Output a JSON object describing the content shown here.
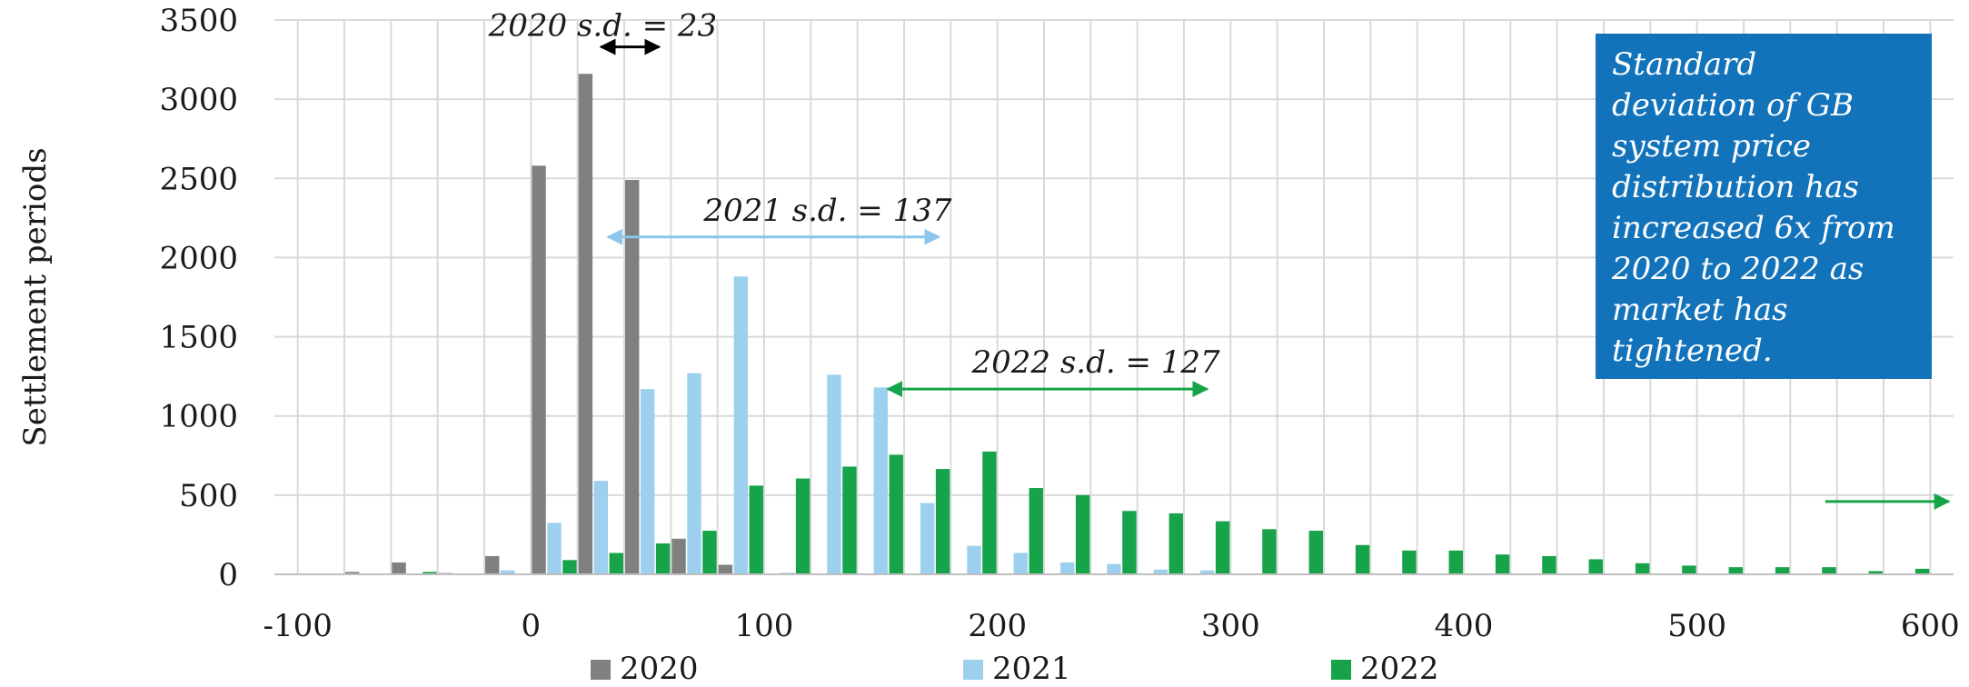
{
  "chart_data": {
    "type": "bar",
    "ylabel": "Settlement periods",
    "xlabel": "",
    "ylim": [
      0,
      3500
    ],
    "yticks": [
      0,
      500,
      1000,
      1500,
      2000,
      2500,
      3000,
      3500
    ],
    "xlim": [
      -110,
      610
    ],
    "xticks": [
      -100,
      0,
      100,
      200,
      300,
      400,
      500,
      600
    ],
    "bin_width": 20,
    "grid": true,
    "legend": "bottom",
    "series": [
      {
        "name": "2020",
        "color": "#808080",
        "x": [
          -70,
          -50,
          -30,
          -10,
          10,
          30,
          50,
          70,
          90,
          110,
          130,
          150
        ],
        "values": [
          15,
          75,
          8,
          115,
          2580,
          3160,
          2490,
          225,
          60,
          5,
          2,
          2
        ]
      },
      {
        "name": "2021",
        "color": "#9dcfee",
        "x": [
          -50,
          -30,
          -10,
          10,
          30,
          50,
          70,
          90,
          110,
          130,
          150,
          170,
          190,
          210,
          230,
          250,
          270,
          290
        ],
        "values": [
          5,
          5,
          25,
          325,
          590,
          1170,
          1270,
          1880,
          10,
          1260,
          1180,
          450,
          180,
          135,
          75,
          65,
          30,
          25
        ]
      },
      {
        "name": "2022",
        "color": "#17a34a",
        "x": [
          -50,
          -30,
          -10,
          10,
          30,
          50,
          70,
          90,
          110,
          130,
          150,
          170,
          190,
          210,
          230,
          250,
          270,
          290,
          310,
          330,
          350,
          370,
          390,
          410,
          430,
          450,
          470,
          490,
          510,
          530,
          550,
          570,
          590,
          610
        ],
        "values": [
          15,
          5,
          5,
          90,
          135,
          195,
          275,
          560,
          605,
          680,
          755,
          665,
          775,
          545,
          500,
          400,
          385,
          335,
          285,
          275,
          185,
          150,
          150,
          125,
          115,
          95,
          70,
          55,
          45,
          45,
          45,
          20,
          35,
          30
        ]
      }
    ],
    "annotations": [
      {
        "text": "2020 s.d. = 23",
        "color": "#000000",
        "x_from": 30,
        "x_to": 55,
        "y": 3330
      },
      {
        "text": "2021 s.d. = 137",
        "color": "#8cc6ec",
        "x_from": 33,
        "x_to": 175,
        "y": 2130
      },
      {
        "text": "2022 s.d. = 127",
        "color": "#17a34a",
        "x_from": 153,
        "x_to": 290,
        "y": 1170
      },
      {
        "text": "",
        "color": "#17a34a",
        "x_from": 555,
        "x_to": 608,
        "y": 460
      }
    ]
  },
  "info_box": {
    "text": "Standard deviation of GB system price distribution has increased 6x from 2020 to 2022 as market has tightened.",
    "lines": [
      "Standard",
      "deviation of GB",
      "system price",
      "distribution has",
      "increased 6x from",
      "2020 to 2022 as",
      "market has",
      "tightened."
    ],
    "background": "#1273bb"
  }
}
